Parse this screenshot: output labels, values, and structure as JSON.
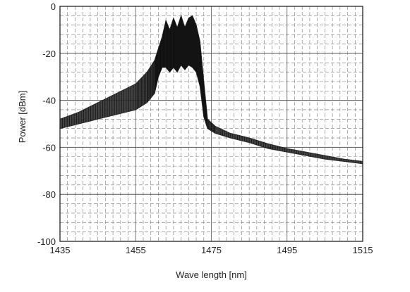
{
  "chart_data": {
    "type": "area",
    "title": "",
    "xlabel": "Wave length [nm]",
    "ylabel": "Power [dBm]",
    "xlim": [
      1435,
      1515
    ],
    "ylim": [
      -100,
      0
    ],
    "xticks": [
      1435,
      1455,
      1475,
      1495,
      1515
    ],
    "yticks": [
      0,
      -20,
      -40,
      -60,
      -80,
      -100
    ],
    "x_tick_labels": [
      "1435",
      "1455",
      "1475",
      "1495",
      "1515"
    ],
    "y_tick_labels": [
      "0",
      "-20",
      "-40",
      "-60",
      "-80",
      "-100"
    ],
    "grid": {
      "major": "solid",
      "minor": "dashed"
    },
    "legend": "none",
    "series": [
      {
        "x": [
          1435,
          1440,
          1445,
          1450,
          1455,
          1458,
          1460,
          1461,
          1462,
          1463,
          1464,
          1465,
          1466,
          1467,
          1468,
          1469,
          1470,
          1471,
          1472,
          1473,
          1474,
          1476,
          1480,
          1485,
          1490,
          1495,
          1500,
          1505,
          1510,
          1515
        ],
        "upper": [
          -48,
          -45,
          -41,
          -37,
          -33,
          -28,
          -23,
          -18,
          -13,
          -6,
          -10,
          -5,
          -9,
          -4,
          -9,
          -5,
          -4,
          -8,
          -15,
          -32,
          -48,
          -51,
          -54,
          -56,
          -58.5,
          -60.5,
          -62,
          -63.5,
          -65,
          -66
        ],
        "lower": [
          -52,
          -50,
          -48,
          -46,
          -44,
          -41,
          -37,
          -30,
          -26,
          -26,
          -28,
          -26,
          -28,
          -25,
          -27,
          -25,
          -26,
          -28,
          -34,
          -47,
          -52,
          -54,
          -56,
          -58,
          -60.5,
          -62,
          -63.5,
          -65,
          -66,
          -67
        ]
      }
    ],
    "colors": {
      "trace": "#2a2a2a",
      "grid_major": "#555555",
      "grid_minor": "#777777",
      "frame": "#222222"
    }
  }
}
